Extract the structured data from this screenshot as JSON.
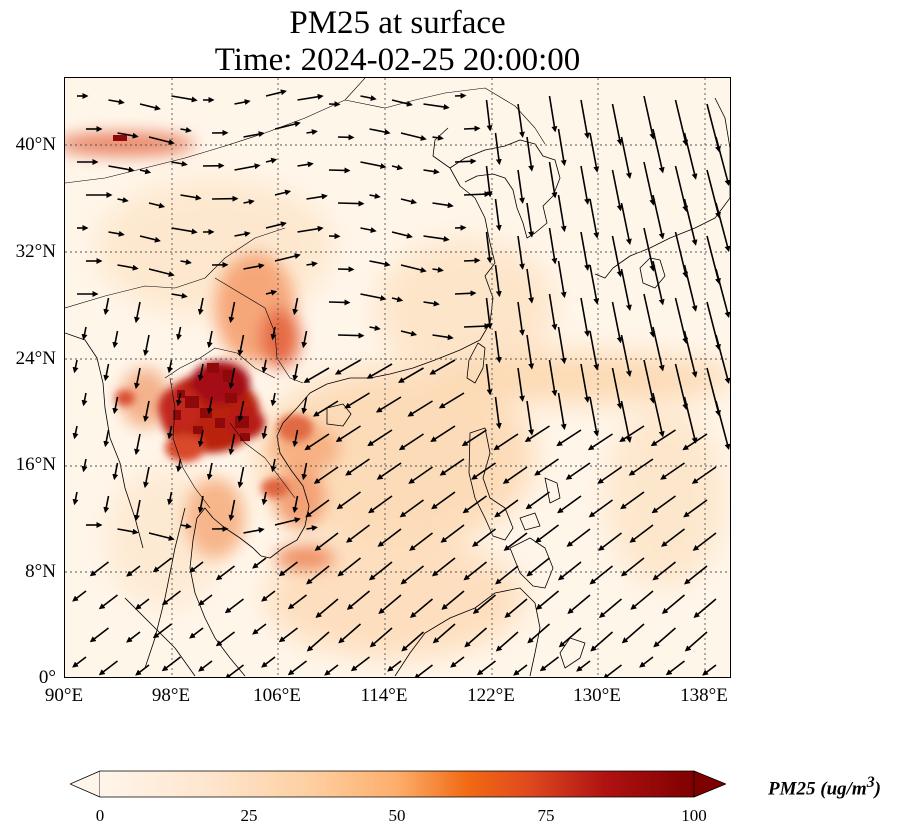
{
  "title_line1": "PM25 at surface",
  "title_line2": "Time: 2024-02-25 20:00:00",
  "axes": {
    "x_ticks": [
      "90°E",
      "98°E",
      "106°E",
      "114°E",
      "122°E",
      "130°E",
      "138°E"
    ],
    "y_ticks": [
      "40°N",
      "32°N",
      "24°N",
      "16°N",
      "8°N",
      "0°"
    ],
    "lon_range": [
      90,
      140
    ],
    "lat_range": [
      0,
      45
    ]
  },
  "colorbar": {
    "label": "PM25 (ug/m",
    "label_sup": "3",
    "label_close": ")",
    "ticks": [
      "0",
      "25",
      "50",
      "75",
      "100"
    ],
    "range": [
      0,
      100
    ],
    "colors": [
      "#fff5eb",
      "#fdd9b4",
      "#fdae6b",
      "#f16913",
      "#d94801",
      "#a50f15",
      "#7f0000"
    ]
  },
  "map_colors": {
    "background": "#fff6ea",
    "coastline": "#000000",
    "grid": "#555555",
    "arrow": "#000000"
  }
}
